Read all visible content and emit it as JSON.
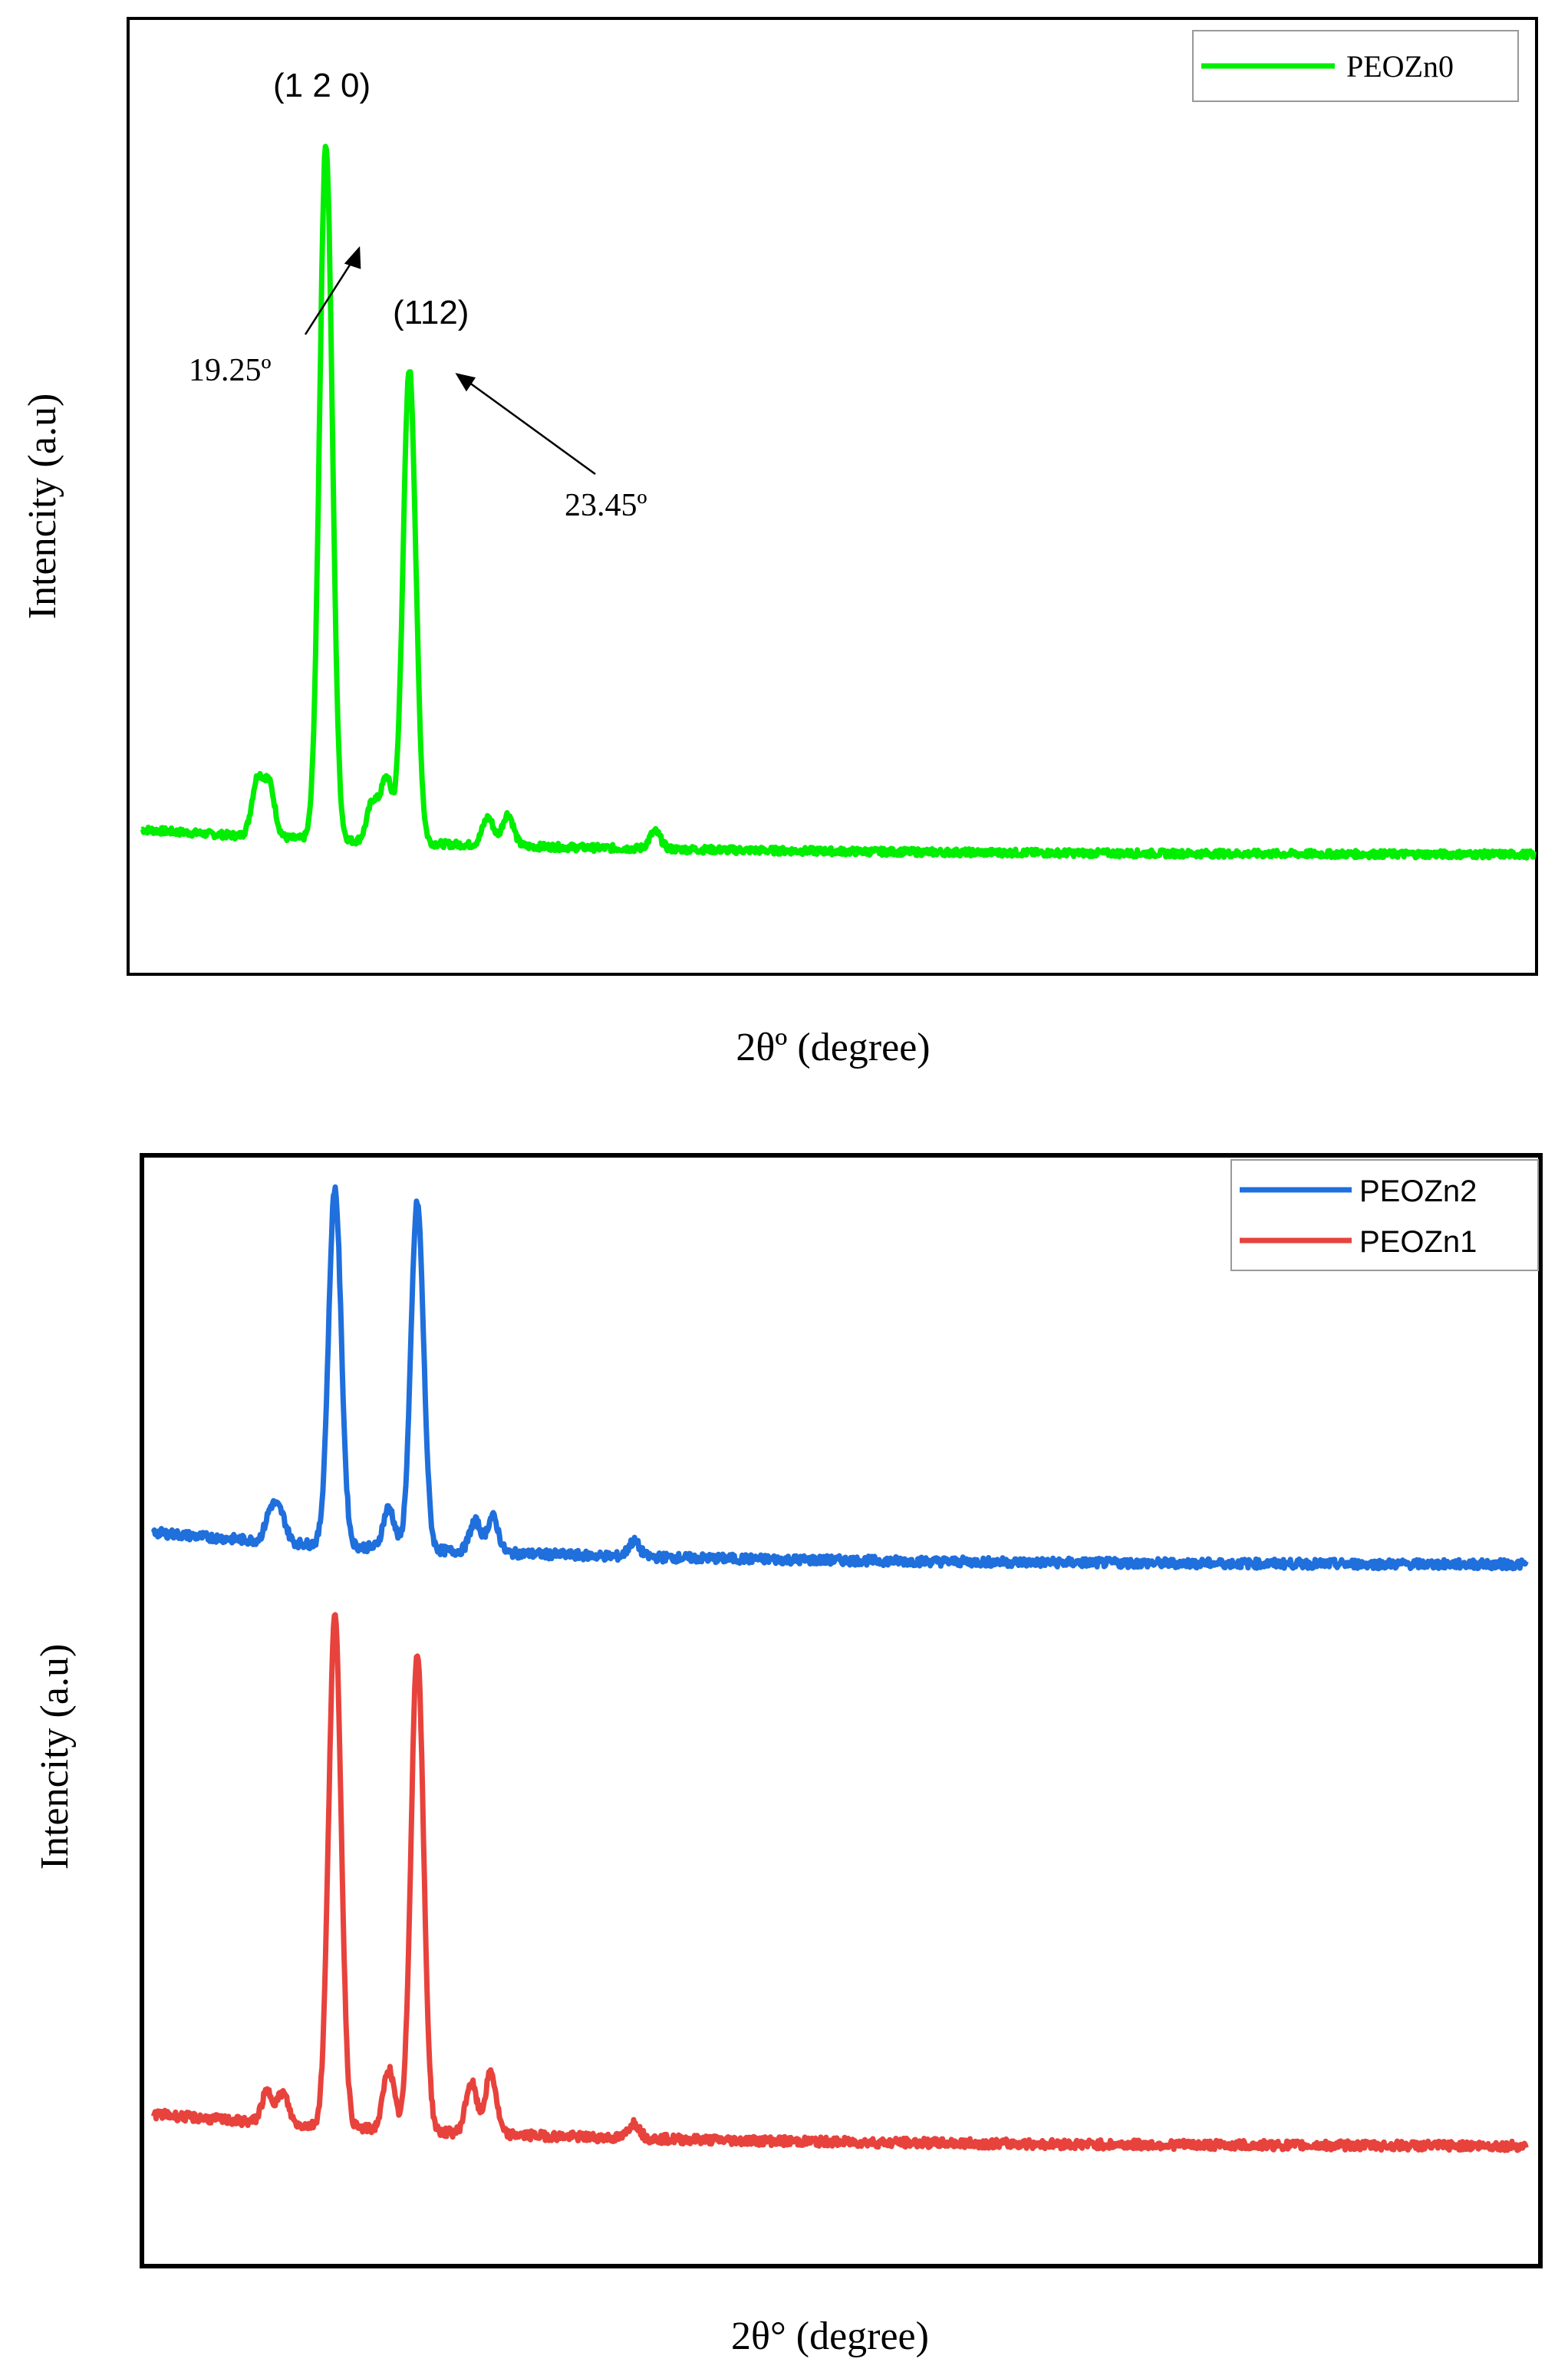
{
  "chart_data": [
    {
      "type": "line",
      "title": "",
      "xlabel": "2θº (degree)",
      "ylabel": "Intencity (a.u)",
      "x_range": [
        10,
        80
      ],
      "y_range": [
        0,
        100
      ],
      "grid": false,
      "legend_position": "top-right",
      "series": [
        {
          "name": "PEOZn0",
          "color": "#00ee00",
          "baseline": 6,
          "peaks": [
            {
              "x": 15.8,
              "h": 7
            },
            {
              "x": 16.4,
              "h": 6.5
            },
            {
              "x": 19.25,
              "h": 88
            },
            {
              "x": 21.6,
              "h": 5
            },
            {
              "x": 22.3,
              "h": 8
            },
            {
              "x": 23.45,
              "h": 60
            },
            {
              "x": 27.4,
              "h": 3.5
            },
            {
              "x": 28.4,
              "h": 4
            },
            {
              "x": 35.8,
              "h": 2.2
            }
          ]
        }
      ],
      "annotations": [
        {
          "text": "(1 2 0)",
          "x": 19.25
        },
        {
          "text": "(112)",
          "x": 23.45
        },
        {
          "text": "19.25º",
          "x": 19.25
        },
        {
          "text": "23.45º",
          "x": 23.45
        }
      ]
    },
    {
      "type": "line",
      "title": "",
      "xlabel": "2θ° (degree)",
      "ylabel": "Intencity (a.u)",
      "x_range": [
        10,
        80
      ],
      "y_range": [
        0,
        100
      ],
      "grid": false,
      "legend_position": "top-right",
      "series": [
        {
          "name": "PEOZn2",
          "color": "#1f6fdc",
          "baseline": 63,
          "peaks": [
            {
              "x": 16.0,
              "h": 3
            },
            {
              "x": 16.5,
              "h": 2.5
            },
            {
              "x": 19.25,
              "h": 35
            },
            {
              "x": 22.0,
              "h": 4
            },
            {
              "x": 23.45,
              "h": 34
            },
            {
              "x": 26.4,
              "h": 3
            },
            {
              "x": 27.3,
              "h": 3.5
            },
            {
              "x": 34.5,
              "h": 1.5
            }
          ]
        },
        {
          "name": "PEOZn1",
          "color": "#e8423c",
          "baseline": 6,
          "peaks": [
            {
              "x": 15.8,
              "h": 3
            },
            {
              "x": 16.6,
              "h": 3
            },
            {
              "x": 19.25,
              "h": 50
            },
            {
              "x": 22.0,
              "h": 6
            },
            {
              "x": 23.45,
              "h": 47
            },
            {
              "x": 26.2,
              "h": 5
            },
            {
              "x": 27.2,
              "h": 6
            },
            {
              "x": 34.5,
              "h": 1.5
            }
          ]
        }
      ]
    }
  ]
}
